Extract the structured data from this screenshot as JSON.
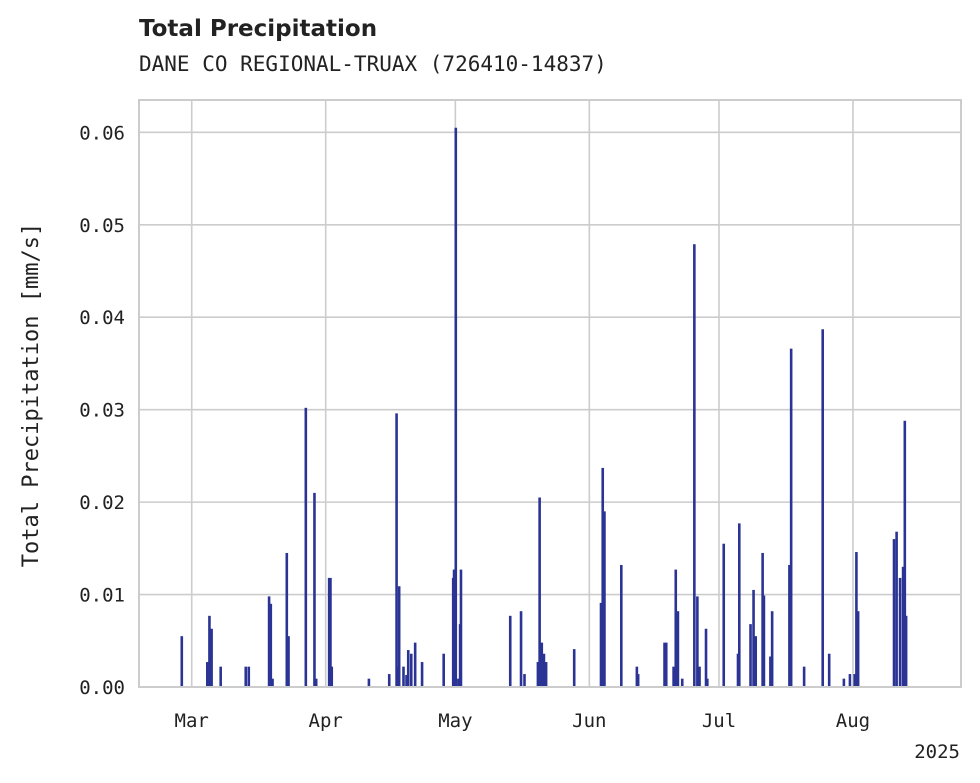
{
  "chart_data": {
    "type": "bar",
    "title": "Total Precipitation",
    "subtitle": "DANE CO REGIONAL-TRUAX (726410-14837)",
    "xlabel": "",
    "ylabel": "Total Precipitation [mm/s]",
    "ylim": [
      0,
      0.0635
    ],
    "xlim_days": [
      -6.7,
      183.5
    ],
    "x_ticks": [
      {
        "label": "Mar",
        "day": 5.5
      },
      {
        "label": "Apr",
        "day": 36.5
      },
      {
        "label": "May",
        "day": 66.5
      },
      {
        "label": "Jun",
        "day": 97.5
      },
      {
        "label": "Jul",
        "day": 127.5
      },
      {
        "label": "Aug",
        "day": 158.5
      }
    ],
    "x_offset_label": "2025",
    "y_ticks": [
      {
        "label": "0.00",
        "value": 0.0
      },
      {
        "label": "0.01",
        "value": 0.01
      },
      {
        "label": "0.02",
        "value": 0.02
      },
      {
        "label": "0.03",
        "value": 0.03
      },
      {
        "label": "0.04",
        "value": 0.04
      },
      {
        "label": "0.05",
        "value": 0.05
      },
      {
        "label": "0.06",
        "value": 0.06
      }
    ],
    "bar_color": "#2b3494",
    "series": [
      {
        "name": "Total Precipitation",
        "x_days": [
          3.2,
          9.1,
          9.6,
          10.1,
          12.2,
          18.0,
          18.7,
          23.4,
          23.8,
          24.2,
          27.5,
          27.7,
          27.9,
          31.9,
          33.9,
          34.3,
          37.3,
          37.6,
          37.9,
          46.5,
          51.2,
          52.9,
          53.3,
          53.5,
          54.5,
          55.2,
          55.6,
          56.3,
          57.2,
          58.8,
          63.8,
          66.0,
          66.2,
          66.6,
          67.2,
          67.6,
          67.8,
          79.2,
          81.7,
          82.5,
          85.6,
          86.0,
          86.5,
          87.0,
          87.5,
          94.0,
          100.2,
          100.6,
          101.0,
          104.9,
          108.5,
          108.8,
          114.9,
          115.3,
          117.0,
          117.5,
          118.0,
          119.0,
          121.8,
          122.5,
          123.0,
          124.5,
          124.8,
          128.6,
          131.9,
          132.2,
          134.8,
          135.5,
          136.0,
          137.6,
          137.9,
          139.4,
          139.8,
          143.8,
          144.2,
          147.2,
          151.5,
          153.0,
          156.4,
          157.8,
          158.9,
          159.3,
          159.7,
          168.0,
          168.6,
          169.4,
          170.1,
          170.5,
          170.8
        ],
        "values": [
          0.0055,
          0.0027,
          0.0077,
          0.0063,
          0.0022,
          0.0022,
          0.0022,
          0.0098,
          0.009,
          0.0009,
          0.0145,
          0.004,
          0.0055,
          0.0302,
          0.021,
          0.0009,
          0.0118,
          0.0118,
          0.0022,
          0.0009,
          0.0014,
          0.0296,
          0.0022,
          0.0109,
          0.0022,
          0.0013,
          0.004,
          0.0036,
          0.0048,
          0.0027,
          0.0036,
          0.0118,
          0.0127,
          0.0605,
          0.0009,
          0.0068,
          0.0127,
          0.0077,
          0.0082,
          0.0014,
          0.0027,
          0.0205,
          0.0048,
          0.0036,
          0.0027,
          0.0041,
          0.0091,
          0.0237,
          0.019,
          0.0132,
          0.0022,
          0.0014,
          0.0048,
          0.0048,
          0.0022,
          0.0127,
          0.0082,
          0.0009,
          0.0479,
          0.0098,
          0.0022,
          0.0063,
          0.0009,
          0.0155,
          0.0036,
          0.0177,
          0.0068,
          0.0105,
          0.0055,
          0.0145,
          0.0099,
          0.0033,
          0.0082,
          0.0132,
          0.0366,
          0.0022,
          0.0387,
          0.0036,
          0.0009,
          0.0014,
          0.0014,
          0.0146,
          0.0082,
          0.016,
          0.0168,
          0.0118,
          0.013,
          0.0288,
          0.0077
        ]
      }
    ]
  }
}
